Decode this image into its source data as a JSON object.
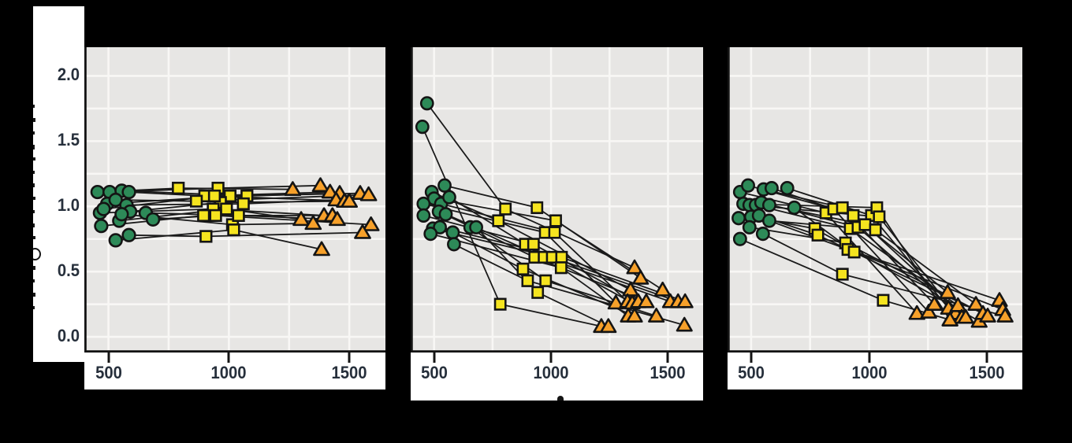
{
  "figure": {
    "background": "#000000",
    "plot_bg": "#e7e6e4",
    "grid_color": "#f8f7f5",
    "strip_bg": "#ffffff",
    "label_color": "#262f3b",
    "spine_color": "#141414",
    "line_color": "#1a1a1a",
    "marker_stroke": "#141414",
    "marker_colors": {
      "circle": "#2d8a58",
      "square": "#f5e41f",
      "triangle": "#f6a02a"
    },
    "titles_visible": false
  },
  "y_axis": {
    "tick_labels": [
      "2.0",
      "1.5",
      "1.0",
      "0.5",
      "0.0"
    ],
    "tick_values": [
      2.0,
      1.5,
      1.0,
      0.5,
      0.0
    ],
    "range": [
      -0.12,
      2.22
    ],
    "label_visible": false,
    "label_note": "rotated y-axis label clipped at left edge; only illegible glyph slivers visible"
  },
  "x_axis": {
    "tick_labels": [
      "500",
      "1000",
      "1500"
    ],
    "tick_values": [
      500,
      1000,
      1500
    ],
    "range": [
      400,
      1650
    ],
    "title_visible": false,
    "title_note": "top sliver of one glyph of otherwise hidden x-axis title visible under middle panel"
  },
  "legend": {
    "marker_groups": [
      {
        "marker": "green-circle",
        "x_cluster": "≈450–690"
      },
      {
        "marker": "yellow-square",
        "x_cluster": "≈770–1075"
      },
      {
        "marker": "orange-triangle",
        "x_cluster": "≈1200–1590"
      }
    ]
  },
  "chart_data": [
    {
      "type": "line",
      "panel": "left",
      "grid": true,
      "xlim": [
        400,
        1650
      ],
      "ylim": [
        -0.12,
        2.22
      ],
      "x_gridlines": [
        500,
        750,
        1000,
        1250,
        1500
      ],
      "y_gridline_step": 0.25,
      "subjects": [
        [
          [
            455,
            1.11
          ],
          [
            790,
            1.14
          ],
          [
            1265,
            1.13
          ]
        ],
        [
          [
            505,
            1.11
          ],
          [
            955,
            1.14
          ],
          [
            1380,
            1.16
          ]
        ],
        [
          [
            555,
            1.12
          ],
          [
            1075,
            1.08
          ],
          [
            1460,
            1.1
          ]
        ],
        [
          [
            585,
            1.11
          ],
          [
            900,
            1.08
          ],
          [
            1420,
            1.11
          ]
        ],
        [
          [
            495,
            1.02
          ],
          [
            1005,
            1.08
          ],
          [
            1545,
            1.1
          ]
        ],
        [
          [
            530,
            1.05
          ],
          [
            865,
            1.04
          ],
          [
            1580,
            1.09
          ]
        ],
        [
          [
            575,
            1.01
          ],
          [
            1060,
            1.02
          ],
          [
            1445,
            1.05
          ]
        ],
        [
          [
            590,
            0.96
          ],
          [
            965,
            1.03
          ],
          [
            1480,
            1.04
          ]
        ],
        [
          [
            465,
            0.95
          ],
          [
            935,
            0.98
          ],
          [
            1395,
            0.93
          ]
        ],
        [
          [
            470,
            0.85
          ],
          [
            895,
            0.93
          ],
          [
            1430,
            0.93
          ]
        ],
        [
          [
            545,
            0.89
          ],
          [
            990,
            0.98
          ],
          [
            1300,
            0.9
          ]
        ],
        [
          [
            555,
            0.94
          ],
          [
            1015,
            0.86
          ],
          [
            1350,
            0.87
          ]
        ],
        [
          [
            655,
            0.95
          ],
          [
            1040,
            0.93
          ],
          [
            1450,
            0.9
          ]
        ],
        [
          [
            685,
            0.9
          ],
          [
            945,
            0.93
          ],
          [
            1590,
            0.86
          ]
        ],
        [
          [
            585,
            0.78
          ],
          [
            905,
            0.77
          ],
          [
            1555,
            0.8
          ]
        ],
        [
          [
            530,
            0.74
          ],
          [
            1020,
            0.82
          ],
          [
            1385,
            0.67
          ]
        ],
        [
          [
            480,
            0.98
          ],
          [
            940,
            1.08
          ],
          [
            1500,
            1.04
          ]
        ]
      ]
    },
    {
      "type": "line",
      "panel": "middle",
      "grid": true,
      "xlim": [
        400,
        1650
      ],
      "ylim": [
        -0.12,
        2.22
      ],
      "x_gridlines": [
        500,
        750,
        1000,
        1250,
        1500
      ],
      "y_gridline_step": 0.25,
      "subjects": [
        [
          [
            470,
            1.79
          ],
          [
            805,
            0.98
          ],
          [
            1357,
            0.53
          ]
        ],
        [
          [
            450,
            1.61
          ],
          [
            783,
            0.25
          ],
          [
            1215,
            0.08
          ]
        ],
        [
          [
            545,
            1.16
          ],
          [
            940,
            0.99
          ],
          [
            1383,
            0.45
          ]
        ],
        [
          [
            490,
            1.11
          ],
          [
            775,
            0.89
          ],
          [
            1340,
            0.36
          ]
        ],
        [
          [
            500,
            1.06
          ],
          [
            1020,
            0.89
          ],
          [
            1477,
            0.36
          ]
        ],
        [
          [
            455,
            1.02
          ],
          [
            975,
            0.8
          ],
          [
            1277,
            0.26
          ]
        ],
        [
          [
            530,
            1.02
          ],
          [
            1015,
            0.8
          ],
          [
            1327,
            0.27
          ]
        ],
        [
          [
            565,
            1.07
          ],
          [
            890,
            0.71
          ],
          [
            1347,
            0.26
          ]
        ],
        [
          [
            455,
            0.93
          ],
          [
            925,
            0.71
          ],
          [
            1373,
            0.27
          ]
        ],
        [
          [
            520,
            0.96
          ],
          [
            930,
            0.61
          ],
          [
            1407,
            0.27
          ]
        ],
        [
          [
            550,
            0.94
          ],
          [
            970,
            0.61
          ],
          [
            1510,
            0.27
          ]
        ],
        [
          [
            495,
            0.83
          ],
          [
            1005,
            0.61
          ],
          [
            1543,
            0.27
          ]
        ],
        [
          [
            525,
            0.84
          ],
          [
            1045,
            0.61
          ],
          [
            1573,
            0.27
          ]
        ],
        [
          [
            485,
            0.79
          ],
          [
            1043,
            0.53
          ],
          [
            1330,
            0.16
          ]
        ],
        [
          [
            580,
            0.8
          ],
          [
            880,
            0.52
          ],
          [
            1357,
            0.16
          ]
        ],
        [
          [
            655,
            0.84
          ],
          [
            977,
            0.43
          ],
          [
            1450,
            0.16
          ]
        ],
        [
          [
            680,
            0.84
          ],
          [
            943,
            0.34
          ],
          [
            1245,
            0.08
          ]
        ],
        [
          [
            585,
            0.71
          ],
          [
            900,
            0.43
          ],
          [
            1570,
            0.09
          ]
        ]
      ]
    },
    {
      "type": "line",
      "panel": "right",
      "grid": true,
      "xlim": [
        400,
        1650
      ],
      "ylim": [
        -0.12,
        2.22
      ],
      "x_gridlines": [
        500,
        750,
        1000,
        1250,
        1500
      ],
      "y_gridline_step": 0.25,
      "subjects": [
        [
          [
            453,
            1.11
          ],
          [
            817,
            0.95
          ],
          [
            1203,
            0.18
          ]
        ],
        [
          [
            487,
            1.16
          ],
          [
            850,
            0.98
          ],
          [
            1253,
            0.19
          ]
        ],
        [
          [
            553,
            1.13
          ],
          [
            887,
            0.99
          ],
          [
            1277,
            0.25
          ]
        ],
        [
          [
            587,
            1.14
          ],
          [
            933,
            0.93
          ],
          [
            1333,
            0.34
          ]
        ],
        [
          [
            653,
            1.14
          ],
          [
            1010,
            0.93
          ],
          [
            1337,
            0.22
          ]
        ],
        [
          [
            467,
            1.02
          ],
          [
            1033,
            0.99
          ],
          [
            1343,
            0.13
          ]
        ],
        [
          [
            493,
            1.01
          ],
          [
            1043,
            0.92
          ],
          [
            1367,
            0.18
          ]
        ],
        [
          [
            520,
            1.01
          ],
          [
            920,
            0.83
          ],
          [
            1377,
            0.24
          ]
        ],
        [
          [
            543,
            1.03
          ],
          [
            953,
            0.84
          ],
          [
            1393,
            0.15
          ]
        ],
        [
          [
            577,
            1.01
          ],
          [
            983,
            0.86
          ],
          [
            1410,
            0.15
          ]
        ],
        [
          [
            447,
            0.91
          ],
          [
            1027,
            0.82
          ],
          [
            1453,
            0.25
          ]
        ],
        [
          [
            500,
            0.92
          ],
          [
            770,
            0.83
          ],
          [
            1467,
            0.12
          ]
        ],
        [
          [
            533,
            0.93
          ],
          [
            783,
            0.78
          ],
          [
            1483,
            0.18
          ]
        ],
        [
          [
            493,
            0.84
          ],
          [
            900,
            0.72
          ],
          [
            1503,
            0.16
          ]
        ],
        [
          [
            577,
            0.89
          ],
          [
            910,
            0.67
          ],
          [
            1553,
            0.28
          ]
        ],
        [
          [
            683,
            0.99
          ],
          [
            937,
            0.65
          ],
          [
            1567,
            0.21
          ]
        ],
        [
          [
            550,
            0.79
          ],
          [
            887,
            0.48
          ],
          [
            1577,
            0.16
          ]
        ],
        [
          [
            453,
            0.75
          ],
          [
            1060,
            0.28
          ],
          [
            1343,
            0.13
          ]
        ]
      ]
    }
  ]
}
